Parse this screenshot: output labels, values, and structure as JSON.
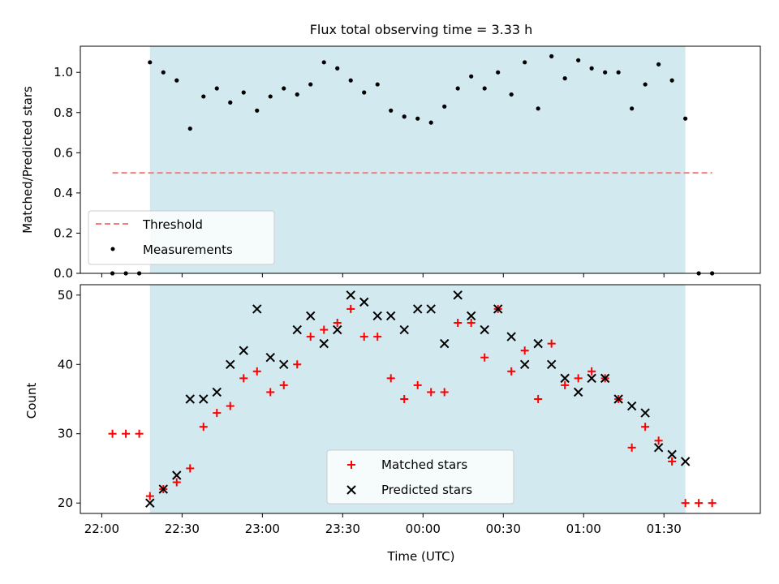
{
  "title": "Flux total observing time = 3.33 h",
  "colors": {
    "observing_window": "#d3e9f0",
    "threshold": "#f08080",
    "measurements": "#000000",
    "matched": "#ff0000",
    "predicted": "#000000"
  },
  "chart_data": [
    {
      "type": "scatter",
      "ylabel": "Matched/Predicted stars",
      "ylim": [
        0,
        1.13
      ],
      "yticks": [
        0.0,
        0.2,
        0.4,
        0.6,
        0.8,
        1.0
      ],
      "yticklabels": [
        "0.0",
        "0.2",
        "0.4",
        "0.6",
        "0.8",
        "1.0"
      ],
      "xlim": [
        "21:52",
        "02:06"
      ],
      "observing_window": [
        "22:18",
        "01:38"
      ],
      "legend": {
        "position": "lower-left",
        "entries": [
          "Threshold",
          "Measurements"
        ]
      },
      "threshold": {
        "name": "Threshold",
        "value": 0.5,
        "x": [
          "22:04",
          "01:48"
        ]
      },
      "series": [
        {
          "name": "Measurements",
          "x": [
            "22:04",
            "22:09",
            "22:14",
            "22:18",
            "22:23",
            "22:28",
            "22:33",
            "22:38",
            "22:43",
            "22:48",
            "22:53",
            "22:58",
            "23:03",
            "23:08",
            "23:13",
            "23:18",
            "23:23",
            "23:28",
            "23:33",
            "23:38",
            "23:43",
            "23:48",
            "23:53",
            "23:58",
            "00:03",
            "00:08",
            "00:13",
            "00:18",
            "00:23",
            "00:28",
            "00:33",
            "00:38",
            "00:43",
            "00:48",
            "00:53",
            "00:58",
            "01:03",
            "01:08",
            "01:13",
            "01:18",
            "01:23",
            "01:28",
            "01:33",
            "01:38",
            "01:43",
            "01:48"
          ],
          "y": [
            0.0,
            0.0,
            0.0,
            1.05,
            1.0,
            0.96,
            0.72,
            0.88,
            0.92,
            0.85,
            0.9,
            0.81,
            0.88,
            0.92,
            0.89,
            0.94,
            1.05,
            1.02,
            0.96,
            0.9,
            0.94,
            0.81,
            0.78,
            0.77,
            0.75,
            0.83,
            0.92,
            0.98,
            0.92,
            1.0,
            0.89,
            1.05,
            0.82,
            1.08,
            0.97,
            1.06,
            1.02,
            1.0,
            1.0,
            0.82,
            0.94,
            1.04,
            0.96,
            0.77,
            0.0,
            0.0
          ]
        }
      ]
    },
    {
      "type": "scatter",
      "xlabel": "Time (UTC)",
      "ylabel": "Count",
      "ylim": [
        18.5,
        51.5
      ],
      "yticks": [
        20,
        30,
        40,
        50
      ],
      "yticklabels": [
        "20",
        "30",
        "40",
        "50"
      ],
      "xlim": [
        "21:52",
        "02:06"
      ],
      "xticks": [
        "22:00",
        "22:30",
        "23:00",
        "23:30",
        "00:00",
        "00:30",
        "01:00",
        "01:30"
      ],
      "xticklabels": [
        "22:00",
        "22:30",
        "23:00",
        "23:30",
        "00:00",
        "00:30",
        "01:00",
        "01:30"
      ],
      "observing_window": [
        "22:18",
        "01:38"
      ],
      "legend": {
        "position": "lower-center",
        "entries": [
          "Matched stars",
          "Predicted stars"
        ]
      },
      "series": [
        {
          "name": "Matched stars",
          "marker": "+",
          "x": [
            "22:04",
            "22:09",
            "22:14",
            "22:18",
            "22:23",
            "22:28",
            "22:33",
            "22:38",
            "22:43",
            "22:48",
            "22:53",
            "22:58",
            "23:03",
            "23:08",
            "23:13",
            "23:18",
            "23:23",
            "23:28",
            "23:33",
            "23:38",
            "23:43",
            "23:48",
            "23:53",
            "23:58",
            "00:03",
            "00:08",
            "00:13",
            "00:18",
            "00:23",
            "00:28",
            "00:33",
            "00:38",
            "00:43",
            "00:48",
            "00:53",
            "00:58",
            "01:03",
            "01:08",
            "01:13",
            "01:18",
            "01:23",
            "01:28",
            "01:33",
            "01:38",
            "01:43",
            "01:48"
          ],
          "y": [
            30,
            30,
            30,
            21,
            22,
            23,
            25,
            31,
            33,
            34,
            38,
            39,
            36,
            37,
            40,
            44,
            45,
            46,
            48,
            44,
            44,
            38,
            35,
            37,
            36,
            36,
            46,
            46,
            41,
            48,
            39,
            42,
            35,
            43,
            37,
            38,
            39,
            38,
            35,
            28,
            31,
            29,
            26,
            20,
            20,
            20
          ]
        },
        {
          "name": "Predicted stars",
          "marker": "x",
          "x": [
            "22:18",
            "22:23",
            "22:28",
            "22:33",
            "22:38",
            "22:43",
            "22:48",
            "22:53",
            "22:58",
            "23:03",
            "23:08",
            "23:13",
            "23:18",
            "23:23",
            "23:28",
            "23:33",
            "23:38",
            "23:43",
            "23:48",
            "23:53",
            "23:58",
            "00:03",
            "00:08",
            "00:13",
            "00:18",
            "00:23",
            "00:28",
            "00:33",
            "00:38",
            "00:43",
            "00:48",
            "00:53",
            "00:58",
            "01:03",
            "01:08",
            "01:13",
            "01:18",
            "01:23",
            "01:28",
            "01:33",
            "01:38"
          ],
          "y": [
            20,
            22,
            24,
            35,
            35,
            36,
            40,
            42,
            48,
            41,
            40,
            45,
            47,
            43,
            45,
            50,
            49,
            47,
            47,
            45,
            48,
            48,
            43,
            50,
            47,
            45,
            48,
            44,
            40,
            43,
            40,
            38,
            36,
            38,
            38,
            35,
            34,
            33,
            28,
            27,
            26
          ]
        }
      ]
    }
  ]
}
